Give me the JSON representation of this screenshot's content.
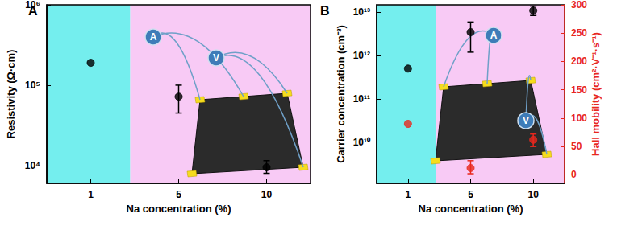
{
  "chart_data": [
    {
      "type": "scatter",
      "title": "A",
      "x_label": "Na concentration (%)",
      "y_label": "Resistivity (Ω·cm)",
      "categories": [
        "1",
        "5",
        "10"
      ],
      "values": [
        190000,
        72000,
        9500
      ],
      "error_bars": [
        null,
        [
          45000,
          100000
        ],
        [
          8000,
          11500
        ]
      ],
      "color": "#000000",
      "marker": "circle",
      "log": "y",
      "grid": false,
      "ylim": [
        6000,
        1000000
      ],
      "yticks": [
        {
          "value": 10000,
          "label": "10⁴"
        },
        {
          "value": 100000,
          "label": "10⁵"
        },
        {
          "value": 1000000,
          "label": "10⁶"
        }
      ],
      "annotations": [
        "A",
        "V"
      ]
    },
    {
      "type": "scatter",
      "title": "B",
      "x_label": "Na concentration (%)",
      "categories": [
        "1",
        "5",
        "10"
      ],
      "series": [
        {
          "name": "Carrier concentration (cm⁻³)",
          "color": "#000000",
          "marker": "circle",
          "values": [
            500000000000,
            3500000000000,
            11000000000000
          ],
          "error_bars": [
            null,
            [
              1200000000000,
              6000000000000
            ],
            [
              8500000000000,
              14000000000000
            ]
          ]
        },
        {
          "name": "Hall mobility (cm²·V⁻¹·s⁻¹)",
          "color": "#e8281e",
          "marker": "circle",
          "axis": "y2",
          "values": [
            90,
            12,
            62
          ],
          "error_bars": [
            null,
            [
              2,
              25
            ],
            [
              50,
              72
            ]
          ]
        }
      ],
      "log": "y",
      "grid": false,
      "ylim": [
        1100000000,
        15000000000000
      ],
      "yticks": [
        {
          "value": 10000000000,
          "label": "10¹⁰"
        },
        {
          "value": 100000000000,
          "label": "10¹¹"
        },
        {
          "value": 1000000000000,
          "label": "10¹²"
        },
        {
          "value": 10000000000000,
          "label": "10¹³"
        }
      ],
      "y2lim": [
        -15,
        300
      ],
      "y2ticks": [
        0,
        50,
        100,
        150,
        200,
        250,
        300
      ],
      "annotations": [
        "A",
        "V"
      ]
    }
  ]
}
